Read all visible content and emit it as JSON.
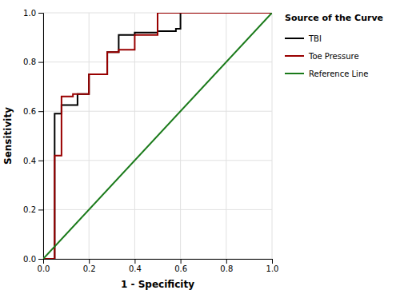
{
  "chart_data": {
    "type": "line",
    "xlabel": "1 - Specificity",
    "ylabel": "Sensitivity",
    "legend_title": "Source of the Curve",
    "legend": "right",
    "grid": true,
    "xlim": [
      0.0,
      1.0
    ],
    "ylim": [
      0.0,
      1.0
    ],
    "xticks": [
      {
        "value": 0.0,
        "label": "0.0"
      },
      0.2,
      0.4,
      0.6,
      0.8,
      {
        "value": 1.0,
        "label": "1.0"
      }
    ],
    "yticks": [
      {
        "value": 0.0,
        "label": "0.0"
      },
      0.2,
      0.4,
      0.6,
      0.8,
      {
        "value": 1.0,
        "label": "1.0"
      }
    ],
    "series": [
      {
        "name": "TBI",
        "color": "#000000",
        "x": [
          0.0,
          0.05,
          0.05,
          0.08,
          0.08,
          0.15,
          0.15,
          0.2,
          0.2,
          0.28,
          0.28,
          0.33,
          0.33,
          0.4,
          0.4,
          0.5,
          0.5,
          0.58,
          0.58,
          0.6,
          0.6,
          1.0
        ],
        "values": [
          0.0,
          0.0,
          0.59,
          0.59,
          0.625,
          0.625,
          0.67,
          0.67,
          0.75,
          0.75,
          0.84,
          0.84,
          0.91,
          0.91,
          0.92,
          0.92,
          0.925,
          0.925,
          0.935,
          0.935,
          1.0,
          1.0
        ]
      },
      {
        "name": "Toe Pressure",
        "color": "#990000",
        "x": [
          0.0,
          0.05,
          0.05,
          0.08,
          0.08,
          0.13,
          0.13,
          0.2,
          0.2,
          0.28,
          0.28,
          0.33,
          0.33,
          0.4,
          0.4,
          0.5,
          0.5,
          0.58,
          0.58,
          1.0
        ],
        "values": [
          0.0,
          0.0,
          0.42,
          0.42,
          0.66,
          0.66,
          0.67,
          0.67,
          0.75,
          0.75,
          0.84,
          0.84,
          0.85,
          0.85,
          0.91,
          0.91,
          1.0,
          1.0,
          1.0,
          1.0
        ]
      },
      {
        "name": "Reference Line",
        "color": "#1a7a1a",
        "x": [
          0.0,
          1.0
        ],
        "values": [
          0.0,
          1.0
        ]
      }
    ]
  }
}
